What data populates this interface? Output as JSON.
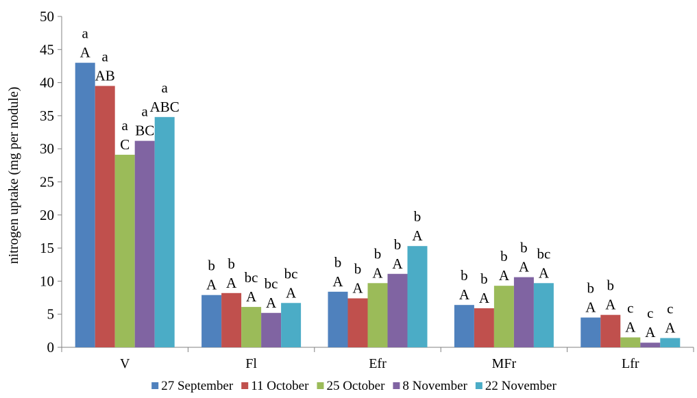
{
  "chart_data": {
    "type": "bar",
    "title": "",
    "xlabel": "",
    "ylabel": "nitrogen uptake (mg per nodule)",
    "ylim": [
      0,
      50
    ],
    "yticks": [
      0,
      5,
      10,
      15,
      20,
      25,
      30,
      35,
      40,
      45,
      50
    ],
    "grid": false,
    "legend_position": "bottom",
    "categories": [
      "V",
      "Fl",
      "Efr",
      "MFr",
      "Lfr"
    ],
    "series": [
      {
        "name": "27 September",
        "color": "#4F81BD",
        "values": [
          43.0,
          7.9,
          8.4,
          6.4,
          4.5
        ],
        "letters_lower": [
          "a",
          "b",
          "b",
          "b",
          "b"
        ],
        "letters_upper": [
          "A",
          "A",
          "A",
          "A",
          "A"
        ]
      },
      {
        "name": "11 October",
        "color": "#C0504D",
        "values": [
          39.5,
          8.2,
          7.4,
          5.9,
          4.9
        ],
        "letters_lower": [
          "a",
          "b",
          "b",
          "b",
          "b"
        ],
        "letters_upper": [
          "AB",
          "A",
          "A",
          "A",
          "A"
        ]
      },
      {
        "name": "25 October",
        "color": "#9BBB59",
        "values": [
          29.1,
          6.1,
          9.7,
          9.3,
          1.5
        ],
        "letters_lower": [
          "a",
          "bc",
          "b",
          "b",
          "c"
        ],
        "letters_upper": [
          "C",
          "A",
          "A",
          "A",
          "A"
        ]
      },
      {
        "name": "8 November",
        "color": "#8064A2",
        "values": [
          31.2,
          5.2,
          11.1,
          10.6,
          0.7
        ],
        "letters_lower": [
          "a",
          "bc",
          "b",
          "b",
          "c"
        ],
        "letters_upper": [
          "BC",
          "A",
          "A",
          "A",
          "A"
        ]
      },
      {
        "name": "22 November",
        "color": "#4BACC6",
        "values": [
          34.8,
          6.7,
          15.3,
          9.7,
          1.4
        ],
        "letters_lower": [
          "a",
          "bc",
          "b",
          "bc",
          "c"
        ],
        "letters_upper": [
          "ABC",
          "A",
          "A",
          "A",
          "A"
        ]
      }
    ]
  }
}
